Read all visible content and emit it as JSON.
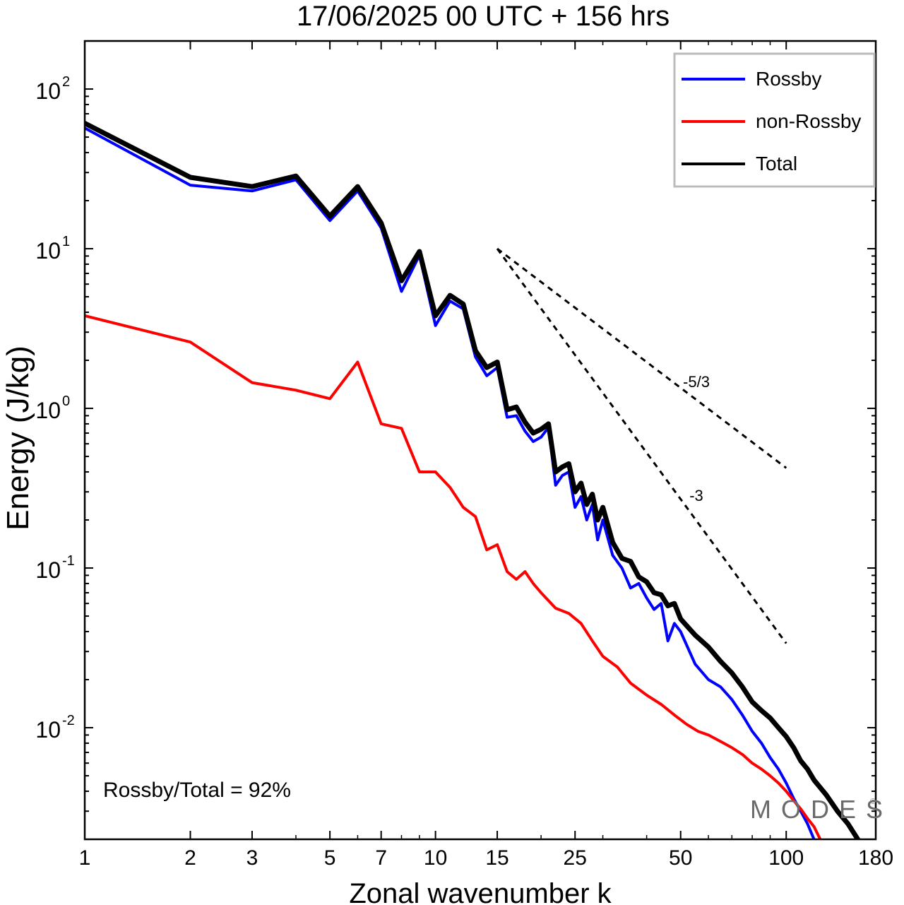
{
  "chart_data": {
    "type": "line",
    "title": "17/06/2025  00 UTC  + 156 hrs",
    "xlabel": "Zonal wavenumber k",
    "ylabel": "Energy (J/kg)",
    "xscale": "log",
    "yscale": "log",
    "xlim": [
      1,
      180
    ],
    "ylim": [
      0.002,
      200
    ],
    "xticks": [
      1,
      2,
      3,
      5,
      7,
      10,
      15,
      25,
      50,
      100,
      180
    ],
    "yticks": [
      {
        "value": 0.01,
        "base": "10",
        "exp": "-2"
      },
      {
        "value": 0.1,
        "base": "10",
        "exp": "-1"
      },
      {
        "value": 1,
        "base": "10",
        "exp": "0"
      },
      {
        "value": 10,
        "base": "10",
        "exp": "1"
      },
      {
        "value": 100,
        "base": "10",
        "exp": "2"
      }
    ],
    "legend_position": "top-right",
    "annotation": "Rossby/Total = 92%",
    "watermark": "MODES",
    "reference_lines": [
      {
        "label": "-5/3",
        "slope": -1.6667,
        "x": [
          15,
          100
        ],
        "y_start": 10
      },
      {
        "label": "-3",
        "slope": -3,
        "x": [
          15,
          100
        ],
        "y_start": 10
      }
    ],
    "series": [
      {
        "name": "Rossby",
        "color": "#0000ff",
        "x": [
          1,
          2,
          3,
          4,
          5,
          6,
          7,
          8,
          9,
          10,
          11,
          12,
          13,
          14,
          15,
          16,
          17,
          18,
          19,
          20,
          21,
          22,
          23,
          24,
          25,
          26,
          27,
          28,
          29,
          30,
          32,
          34,
          36,
          38,
          40,
          42,
          44,
          46,
          48,
          50,
          55,
          60,
          65,
          70,
          75,
          80,
          85,
          90,
          95,
          100,
          105,
          110,
          115,
          120
        ],
        "y": [
          57,
          25,
          23,
          27,
          15,
          23,
          13.5,
          5.4,
          9.1,
          3.3,
          4.7,
          4.2,
          2.1,
          1.6,
          1.8,
          0.88,
          0.9,
          0.72,
          0.62,
          0.66,
          0.76,
          0.33,
          0.38,
          0.4,
          0.24,
          0.28,
          0.2,
          0.25,
          0.15,
          0.2,
          0.12,
          0.1,
          0.075,
          0.08,
          0.065,
          0.055,
          0.06,
          0.035,
          0.045,
          0.04,
          0.025,
          0.02,
          0.018,
          0.015,
          0.012,
          0.0095,
          0.008,
          0.0065,
          0.0055,
          0.0045,
          0.0036,
          0.003,
          0.0025,
          0.002
        ]
      },
      {
        "name": "non-Rossby",
        "color": "#ff0000",
        "x": [
          1,
          2,
          3,
          4,
          5,
          6,
          7,
          8,
          9,
          10,
          11,
          12,
          13,
          14,
          15,
          16,
          17,
          18,
          19,
          20,
          22,
          24,
          26,
          28,
          30,
          33,
          36,
          40,
          44,
          48,
          52,
          56,
          60,
          65,
          70,
          75,
          80,
          85,
          90,
          95,
          100,
          105,
          110,
          115,
          120,
          125
        ],
        "y": [
          3.8,
          2.6,
          1.45,
          1.3,
          1.15,
          1.95,
          0.8,
          0.75,
          0.4,
          0.4,
          0.32,
          0.24,
          0.21,
          0.13,
          0.14,
          0.095,
          0.085,
          0.095,
          0.08,
          0.07,
          0.056,
          0.052,
          0.045,
          0.035,
          0.028,
          0.024,
          0.019,
          0.016,
          0.014,
          0.012,
          0.0105,
          0.0095,
          0.009,
          0.0082,
          0.0075,
          0.0068,
          0.006,
          0.0055,
          0.005,
          0.0045,
          0.004,
          0.0035,
          0.0031,
          0.0027,
          0.0024,
          0.002
        ]
      },
      {
        "name": "Total",
        "color": "#000000",
        "x": [
          1,
          2,
          3,
          4,
          5,
          6,
          7,
          8,
          9,
          10,
          11,
          12,
          13,
          14,
          15,
          16,
          17,
          18,
          19,
          20,
          21,
          22,
          23,
          24,
          25,
          26,
          27,
          28,
          29,
          30,
          32,
          34,
          36,
          38,
          40,
          42,
          44,
          46,
          48,
          50,
          55,
          60,
          65,
          70,
          75,
          80,
          85,
          90,
          95,
          100,
          105,
          110,
          115,
          120,
          130,
          140,
          150,
          160
        ],
        "y": [
          61,
          28,
          24.5,
          28.5,
          16,
          24.5,
          14.5,
          6.3,
          9.6,
          3.8,
          5.1,
          4.5,
          2.3,
          1.8,
          1.95,
          0.98,
          1.02,
          0.82,
          0.7,
          0.74,
          0.8,
          0.4,
          0.43,
          0.45,
          0.3,
          0.34,
          0.25,
          0.29,
          0.2,
          0.24,
          0.145,
          0.115,
          0.11,
          0.088,
          0.082,
          0.07,
          0.068,
          0.058,
          0.06,
          0.048,
          0.038,
          0.032,
          0.026,
          0.022,
          0.018,
          0.0145,
          0.0128,
          0.0115,
          0.01,
          0.0088,
          0.0075,
          0.0062,
          0.0055,
          0.0047,
          0.0038,
          0.003,
          0.0025,
          0.002
        ]
      }
    ]
  }
}
